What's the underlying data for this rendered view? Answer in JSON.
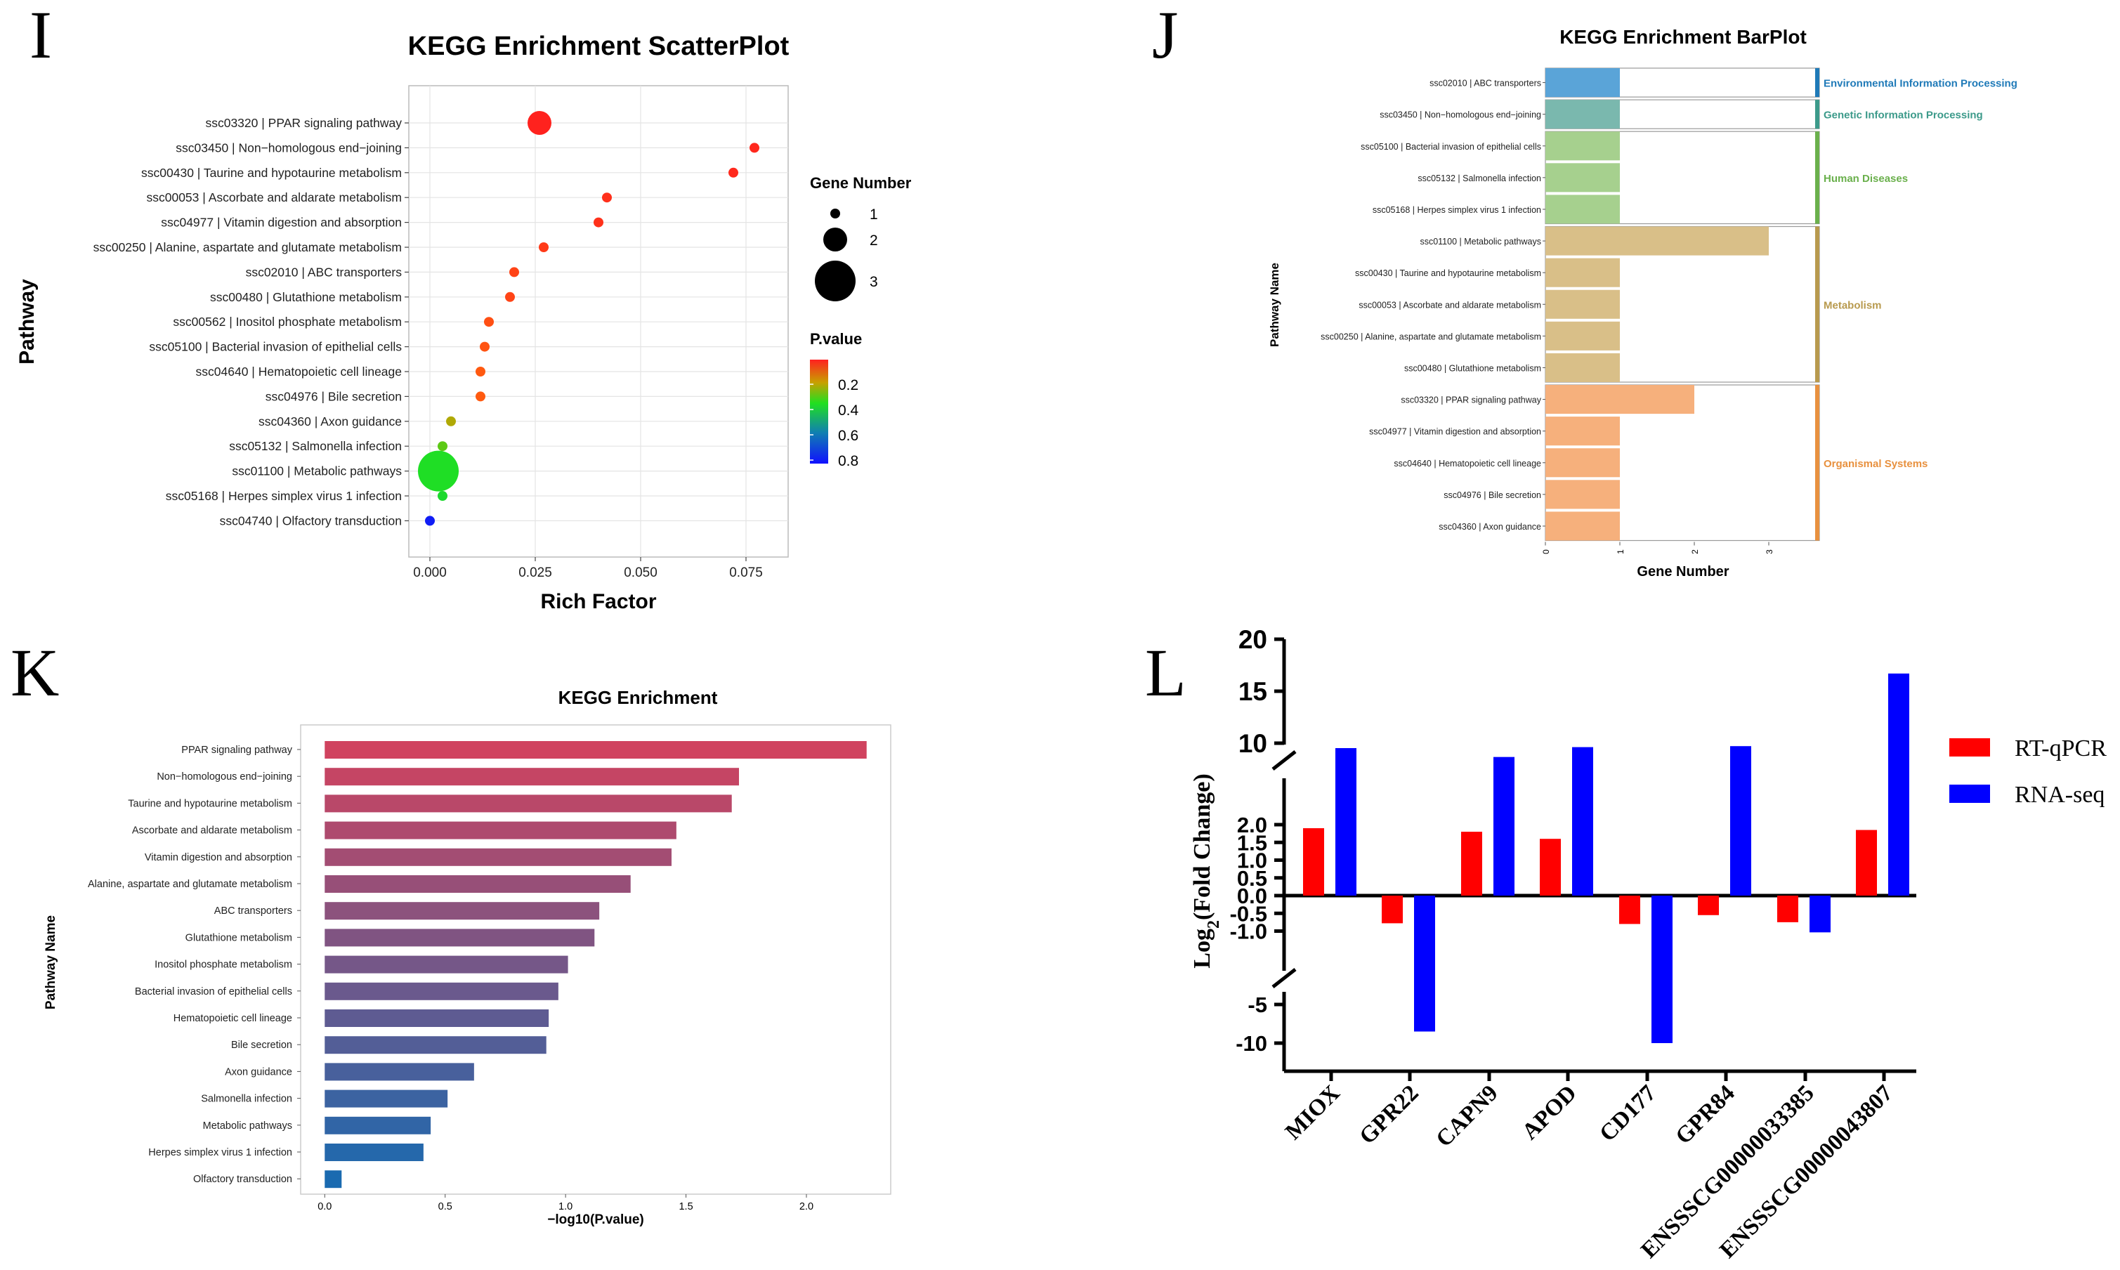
{
  "chart_data": [
    {
      "panel": "I",
      "type": "scatter",
      "title": "KEGG Enrichment ScatterPlot",
      "xlabel": "Rich Factor",
      "ylabel": "Pathway",
      "xlim": [
        -0.005,
        0.085
      ],
      "xticks": [
        0.0,
        0.025,
        0.05,
        0.075
      ],
      "xtick_labels": [
        "0.000",
        "0.025",
        "0.050",
        "0.075"
      ],
      "pathways": [
        "ssc03320 | PPAR signaling pathway",
        "ssc03450 | Non−homologous end−joining",
        "ssc00430 | Taurine and hypotaurine metabolism",
        "ssc00053 | Ascorbate and aldarate metabolism",
        "ssc04977 | Vitamin digestion and absorption",
        "ssc00250 | Alanine, aspartate and glutamate metabolism",
        "ssc02010 | ABC transporters",
        "ssc00480 | Glutathione metabolism",
        "ssc00562 | Inositol phosphate metabolism",
        "ssc05100 | Bacterial invasion of epithelial cells",
        "ssc04640 | Hematopoietic cell lineage",
        "ssc04976 | Bile secretion",
        "ssc04360 | Axon guidance",
        "ssc05132 | Salmonella infection",
        "ssc01100 | Metabolic pathways",
        "ssc05168 | Herpes simplex virus 1 infection",
        "ssc04740 | Olfactory transduction"
      ],
      "rich_factor": [
        0.026,
        0.077,
        0.072,
        0.042,
        0.04,
        0.027,
        0.02,
        0.019,
        0.014,
        0.013,
        0.012,
        0.012,
        0.005,
        0.003,
        0.002,
        0.003,
        0.0
      ],
      "gene_number": [
        2,
        1,
        1,
        1,
        1,
        1,
        1,
        1,
        1,
        1,
        1,
        1,
        1,
        1,
        3,
        1,
        1
      ],
      "pvalue": [
        0.006,
        0.019,
        0.02,
        0.035,
        0.037,
        0.054,
        0.073,
        0.076,
        0.098,
        0.107,
        0.117,
        0.119,
        0.24,
        0.31,
        0.37,
        0.39,
        0.86
      ],
      "legend_size_title": "Gene Number",
      "legend_size_labels": [
        "1",
        "2",
        "3"
      ],
      "legend_color_title": "P.value",
      "legend_color_labels": [
        "0.2",
        "0.4",
        "0.6",
        "0.8"
      ]
    },
    {
      "panel": "J",
      "type": "bar",
      "orientation": "horizontal",
      "title": "KEGG Enrichment BarPlot",
      "xlabel": "Gene Number",
      "ylabel": "Pathway Name",
      "xlim": [
        0,
        3.5
      ],
      "xtick_labels": [
        "0",
        "1",
        "2",
        "3"
      ],
      "groups": [
        {
          "name": "Environmental Information Processing",
          "color": "#5aa4d8",
          "dark": "#1f7ab8",
          "items": [
            {
              "label": "ssc02010 | ABC transporters",
              "value": 1
            }
          ]
        },
        {
          "name": "Genetic Information Processing",
          "color": "#7ab8ae",
          "dark": "#3c9a8a",
          "items": [
            {
              "label": "ssc03450 | Non−homologous end−joining",
              "value": 1
            }
          ]
        },
        {
          "name": "Human Diseases",
          "color": "#a6d08e",
          "dark": "#6ab04c",
          "items": [
            {
              "label": "ssc05100 | Bacterial invasion of epithelial cells",
              "value": 1
            },
            {
              "label": "ssc05132 | Salmonella infection",
              "value": 1
            },
            {
              "label": "ssc05168 | Herpes simplex virus 1 infection",
              "value": 1
            }
          ]
        },
        {
          "name": "Metabolism",
          "color": "#d9bf88",
          "dark": "#b89a4e",
          "items": [
            {
              "label": "ssc01100 | Metabolic pathways",
              "value": 3
            },
            {
              "label": "ssc00430 | Taurine and hypotaurine metabolism",
              "value": 1
            },
            {
              "label": "ssc00053 | Ascorbate and aldarate metabolism",
              "value": 1
            },
            {
              "label": "ssc00250 | Alanine, aspartate and glutamate metabolism",
              "value": 1
            },
            {
              "label": "ssc00480 | Glutathione metabolism",
              "value": 1
            }
          ]
        },
        {
          "name": "Organismal Systems",
          "color": "#f6b07c",
          "dark": "#e8913f",
          "items": [
            {
              "label": "ssc03320 | PPAR signaling pathway",
              "value": 2
            },
            {
              "label": "ssc04977 | Vitamin digestion and absorption",
              "value": 1
            },
            {
              "label": "ssc04640 | Hematopoietic cell lineage",
              "value": 1
            },
            {
              "label": "ssc04976 | Bile secretion",
              "value": 1
            },
            {
              "label": "ssc04360 | Axon guidance",
              "value": 1
            }
          ]
        }
      ]
    },
    {
      "panel": "K",
      "type": "bar",
      "orientation": "horizontal",
      "title": "KEGG Enrichment",
      "xlabel": "−log10(P.value)",
      "ylabel": "Pathway Name",
      "xlim": [
        -0.1,
        2.35
      ],
      "xticks": [
        0,
        0.5,
        1,
        1.5,
        2
      ],
      "xtick_labels": [
        "0.0",
        "0.5",
        "1.0",
        "1.5",
        "2.0"
      ],
      "categories": [
        "PPAR signaling pathway",
        "Non−homologous end−joining",
        "Taurine and hypotaurine metabolism",
        "Ascorbate and aldarate metabolism",
        "Vitamin digestion and absorption",
        "Alanine, aspartate and glutamate metabolism",
        "ABC transporters",
        "Glutathione metabolism",
        "Inositol phosphate metabolism",
        "Bacterial invasion of epithelial cells",
        "Hematopoietic cell lineage",
        "Bile secretion",
        "Axon guidance",
        "Salmonella infection",
        "Metabolic pathways",
        "Herpes simplex virus 1 infection",
        "Olfactory transduction"
      ],
      "values": [
        2.25,
        1.72,
        1.69,
        1.46,
        1.44,
        1.27,
        1.14,
        1.12,
        1.01,
        0.97,
        0.93,
        0.92,
        0.62,
        0.51,
        0.44,
        0.41,
        0.07
      ],
      "color_start": "#d0435f",
      "color_end": "#1a6ab0"
    },
    {
      "panel": "L",
      "type": "bar",
      "ylabel_main": "Log",
      "ylabel_sub": "2",
      "ylabel_rest": "(Fold Change)",
      "categories": [
        "MIOX",
        "GPR22",
        "CAPN9",
        "APOD",
        "CD177",
        "GPR84",
        "ENSSSCG00000033385",
        "ENSSSCG00000043807"
      ],
      "series": [
        {
          "name": "RT-qPCR",
          "color": "#ff0000",
          "values": [
            1.9,
            -0.78,
            1.8,
            1.6,
            -0.8,
            -0.55,
            -0.75,
            1.85
          ]
        },
        {
          "name": "RNA-seq",
          "color": "#0000ff",
          "values": [
            9.5,
            -8.5,
            8.6,
            9.6,
            -10,
            9.7,
            -1.07,
            16.7
          ]
        }
      ],
      "yticks_top": [
        "20",
        "15",
        "10"
      ],
      "yticks_mid": [
        "2.0",
        "1.5",
        "1.0",
        "0.5",
        "0.0",
        "-0.5",
        "-1.0"
      ],
      "yticks_bottom": [
        "-5",
        "-10"
      ]
    }
  ],
  "panel_letters": {
    "I": "I",
    "J": "J",
    "K": "K",
    "L": "L"
  }
}
